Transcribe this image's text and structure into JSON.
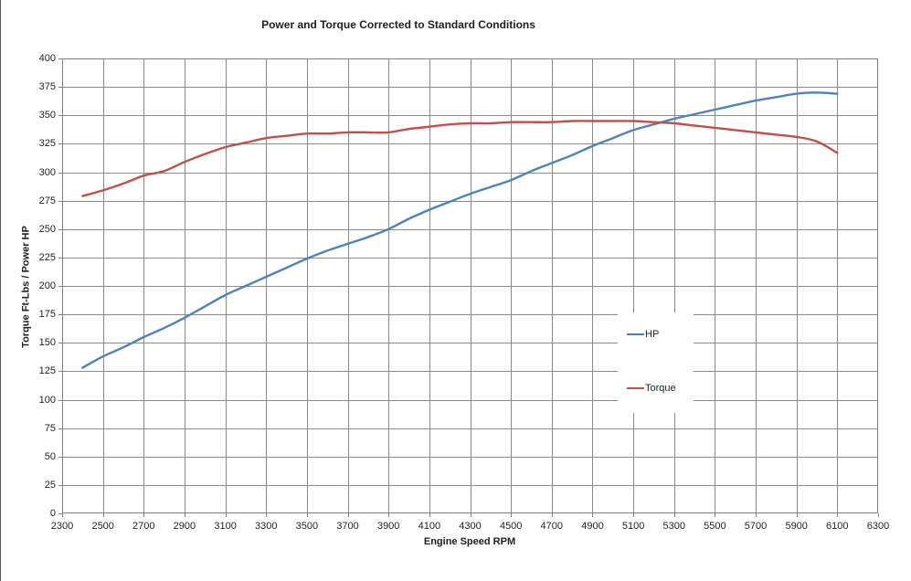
{
  "chart_data": {
    "type": "line",
    "title": "Power and Torque Corrected to Standard Conditions",
    "xlabel": "Engine Speed RPM",
    "ylabel": "Torque Ft-Lbs / Power  HP",
    "xlim": [
      2300,
      6300
    ],
    "ylim": [
      0,
      400
    ],
    "x_ticks": [
      2300,
      2500,
      2700,
      2900,
      3100,
      3300,
      3500,
      3700,
      3900,
      4100,
      4300,
      4500,
      4700,
      4900,
      5100,
      5300,
      5500,
      5700,
      5900,
      6100,
      6300
    ],
    "y_ticks": [
      0,
      25,
      50,
      75,
      100,
      125,
      150,
      175,
      200,
      225,
      250,
      275,
      300,
      325,
      350,
      375,
      400
    ],
    "grid": true,
    "legend_position": "middle-right",
    "x": [
      2400,
      2500,
      2600,
      2700,
      2800,
      2900,
      3000,
      3100,
      3200,
      3300,
      3400,
      3500,
      3600,
      3700,
      3800,
      3900,
      4000,
      4100,
      4200,
      4300,
      4400,
      4500,
      4600,
      4700,
      4800,
      4900,
      5000,
      5100,
      5200,
      5300,
      5400,
      5500,
      5600,
      5700,
      5800,
      5900,
      6000,
      6100
    ],
    "series": [
      {
        "name": "HP",
        "color": "#4F81BD",
        "values": [
          128,
          138,
          146,
          155,
          163,
          172,
          182,
          192,
          200,
          208,
          216,
          224,
          231,
          237,
          243,
          250,
          259,
          267,
          274,
          281,
          287,
          293,
          301,
          308,
          315,
          323,
          330,
          337,
          342,
          347,
          351,
          355,
          359,
          363,
          366,
          369,
          370,
          369
        ]
      },
      {
        "name": "Torque",
        "color": "#C0504D",
        "values": [
          279,
          284,
          290,
          297,
          301,
          309,
          316,
          322,
          326,
          330,
          332,
          334,
          334,
          335,
          335,
          335,
          338,
          340,
          342,
          343,
          343,
          344,
          344,
          344,
          345,
          345,
          345,
          345,
          344,
          343,
          341,
          339,
          337,
          335,
          333,
          331,
          327,
          317
        ]
      }
    ],
    "colors": {
      "grid": "#8A8A8A",
      "plot_border": "#808080",
      "text": "#1F1F1F",
      "background": "#FFFFFF"
    }
  }
}
